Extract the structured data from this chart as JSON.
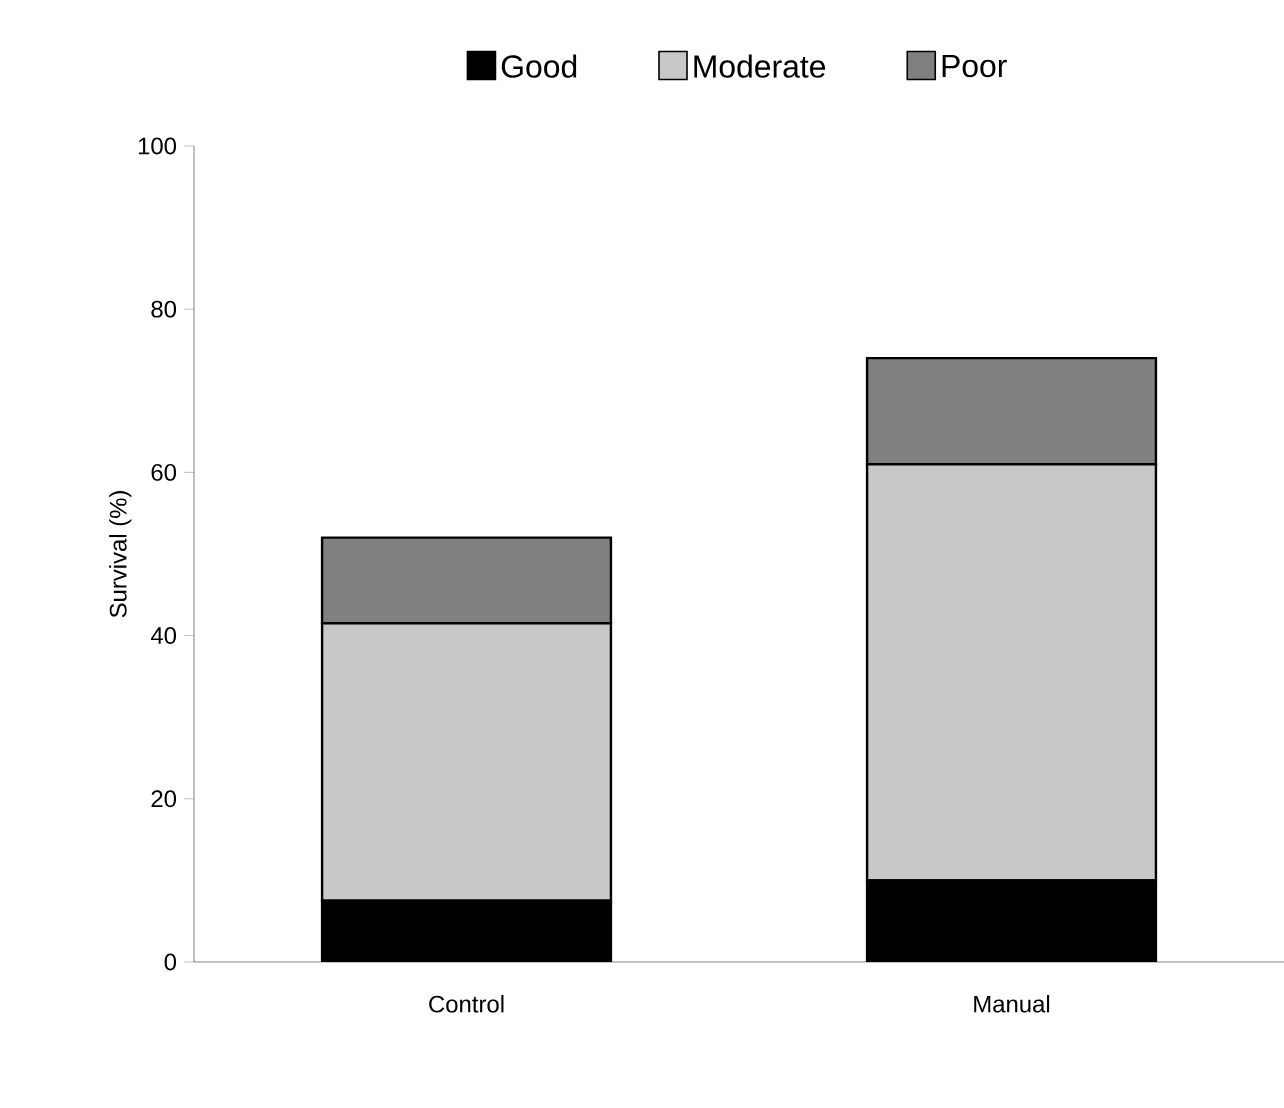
{
  "chart_data": {
    "type": "bar",
    "stacked": true,
    "categories": [
      "Control",
      "Manual"
    ],
    "ylabel": "Survival (%)",
    "ylim": [
      0,
      100
    ],
    "yticks": [
      0,
      20,
      40,
      60,
      80,
      100
    ],
    "legend": "top",
    "series": [
      {
        "name": "Good",
        "color": "#000000",
        "values": [
          7.5,
          10
        ]
      },
      {
        "name": "Moderate",
        "color": "#c8c8c8",
        "values": [
          34,
          51
        ]
      },
      {
        "name": "Poor",
        "color": "#808080",
        "values": [
          10.5,
          13
        ]
      }
    ]
  }
}
